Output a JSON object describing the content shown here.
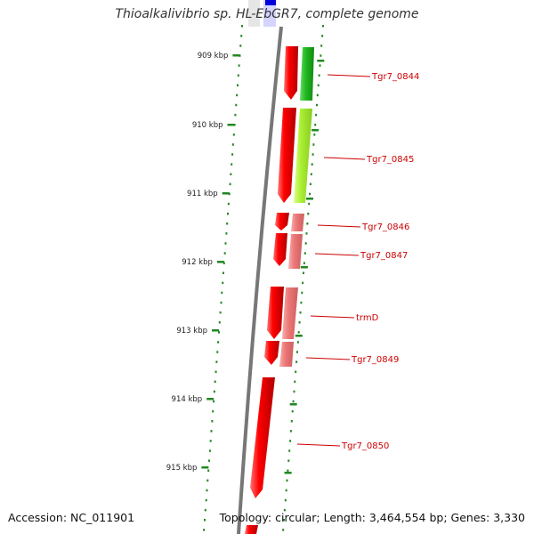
{
  "title": "Thioalkalivibrio sp. HL-EbGR7, complete genome",
  "accession": "Accession: NC_011901",
  "topology": "Topology: circular; Length: 3,464,554 bp; Genes: 3,330",
  "scale": {
    "unit": "kbp",
    "ticks": [
      "909 kbp",
      "910 kbp",
      "911 kbp",
      "912 kbp",
      "913 kbp",
      "914 kbp",
      "915 kbp"
    ]
  },
  "genes": [
    {
      "label": "Tgr7_0844",
      "color": "#22bb22"
    },
    {
      "label": "Tgr7_0845",
      "color": "#aaee33"
    },
    {
      "label": "Tgr7_0846",
      "color": "#ee7777"
    },
    {
      "label": "Tgr7_0847",
      "color": "#ee7777"
    },
    {
      "label": "trmD",
      "color": "#ee7777"
    },
    {
      "label": "Tgr7_0849",
      "color": "#ee7777"
    },
    {
      "label": "Tgr7_0850",
      "color": "#ee0000"
    }
  ],
  "colors": {
    "feature": "#ee0000",
    "label": "#cc0000",
    "scale": "#228822",
    "backbone": "#777777"
  }
}
